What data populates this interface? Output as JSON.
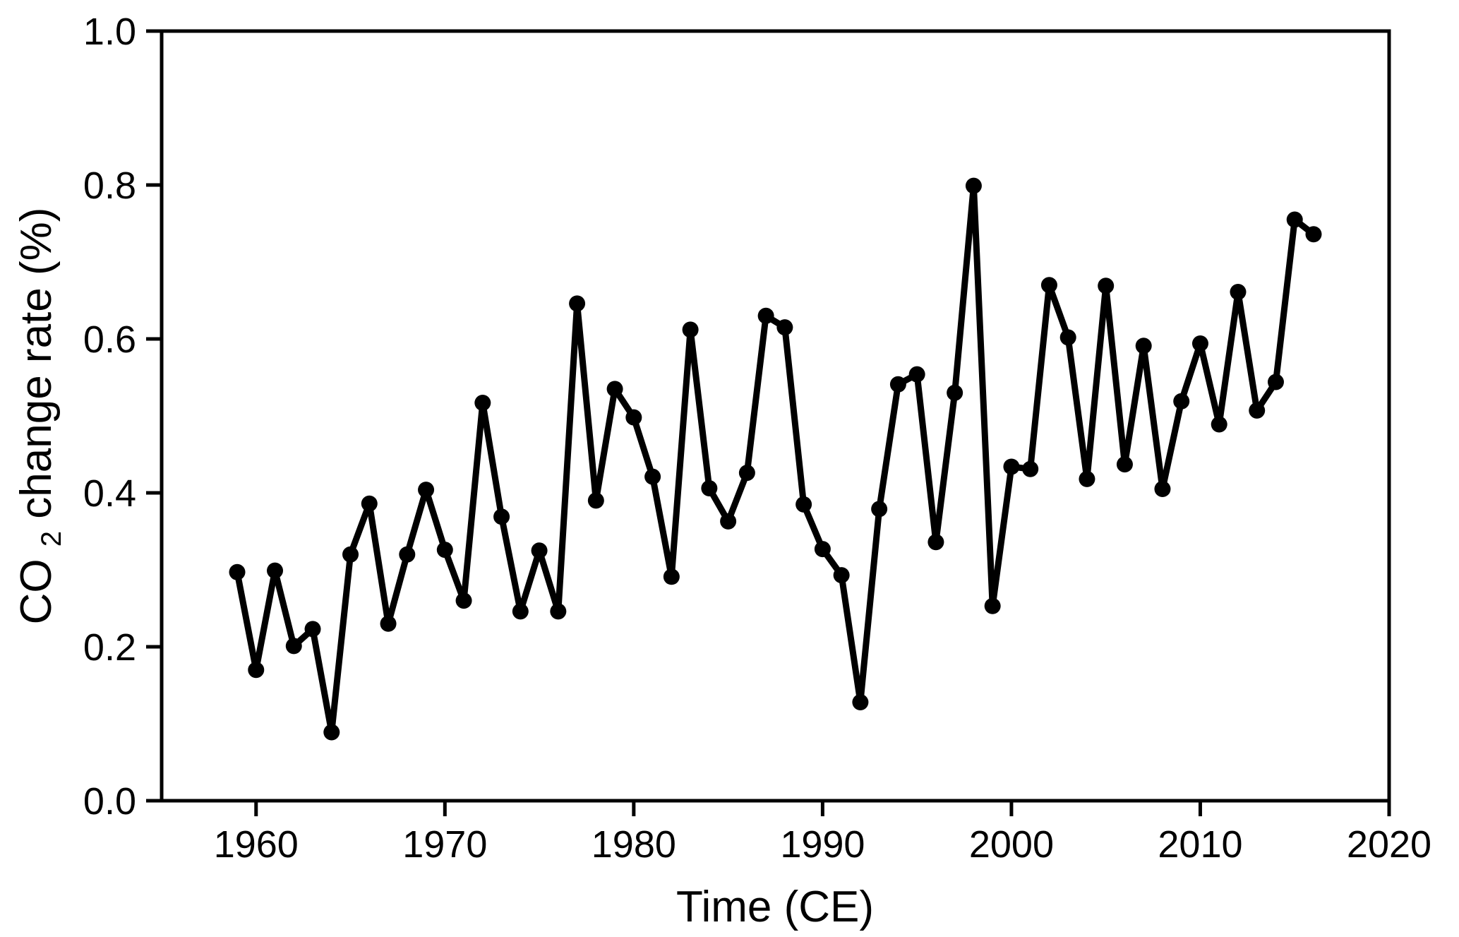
{
  "chart_data": {
    "type": "line",
    "title": "",
    "xlabel": "Time (CE)",
    "ylabel": {
      "prefix": "CO",
      "sub": "2",
      "suffix": " change rate (%)"
    },
    "xlim": [
      1955,
      2020
    ],
    "ylim": [
      0.0,
      1.0
    ],
    "grid": false,
    "legend": false,
    "x_ticks": [
      {
        "value": 1960,
        "label": "1960"
      },
      {
        "value": 1970,
        "label": "1970"
      },
      {
        "value": 1980,
        "label": "1980"
      },
      {
        "value": 1990,
        "label": "1990"
      },
      {
        "value": 2000,
        "label": "2000"
      },
      {
        "value": 2010,
        "label": "2010"
      },
      {
        "value": 2020,
        "label": "2020"
      }
    ],
    "y_ticks": [
      {
        "value": 0.0,
        "label": "0.0"
      },
      {
        "value": 0.2,
        "label": "0.2"
      },
      {
        "value": 0.4,
        "label": "0.4"
      },
      {
        "value": 0.6,
        "label": "0.6"
      },
      {
        "value": 0.8,
        "label": "0.8"
      },
      {
        "value": 1.0,
        "label": "1.0"
      }
    ],
    "line_color": "#000000",
    "marker_color": "#000000",
    "series": [
      {
        "name": "CO2 change rate",
        "x": [
          1959,
          1960,
          1961,
          1962,
          1963,
          1964,
          1965,
          1966,
          1967,
          1968,
          1969,
          1970,
          1971,
          1972,
          1973,
          1974,
          1975,
          1976,
          1977,
          1978,
          1979,
          1980,
          1981,
          1982,
          1983,
          1984,
          1985,
          1986,
          1987,
          1988,
          1989,
          1990,
          1991,
          1992,
          1993,
          1994,
          1995,
          1996,
          1997,
          1998,
          1999,
          2000,
          2001,
          2002,
          2003,
          2004,
          2005,
          2006,
          2007,
          2008,
          2009,
          2010,
          2011,
          2012,
          2013,
          2014,
          2015,
          2016
        ],
        "y": [
          0.297,
          0.17,
          0.299,
          0.201,
          0.223,
          0.089,
          0.32,
          0.386,
          0.23,
          0.32,
          0.404,
          0.326,
          0.26,
          0.517,
          0.369,
          0.246,
          0.325,
          0.246,
          0.646,
          0.39,
          0.535,
          0.498,
          0.421,
          0.291,
          0.612,
          0.406,
          0.363,
          0.426,
          0.63,
          0.615,
          0.385,
          0.327,
          0.293,
          0.128,
          0.379,
          0.541,
          0.554,
          0.336,
          0.53,
          0.799,
          0.253,
          0.434,
          0.431,
          0.67,
          0.602,
          0.418,
          0.669,
          0.437,
          0.591,
          0.405,
          0.519,
          0.594,
          0.489,
          0.661,
          0.507,
          0.544,
          0.755,
          0.736
        ]
      }
    ]
  }
}
